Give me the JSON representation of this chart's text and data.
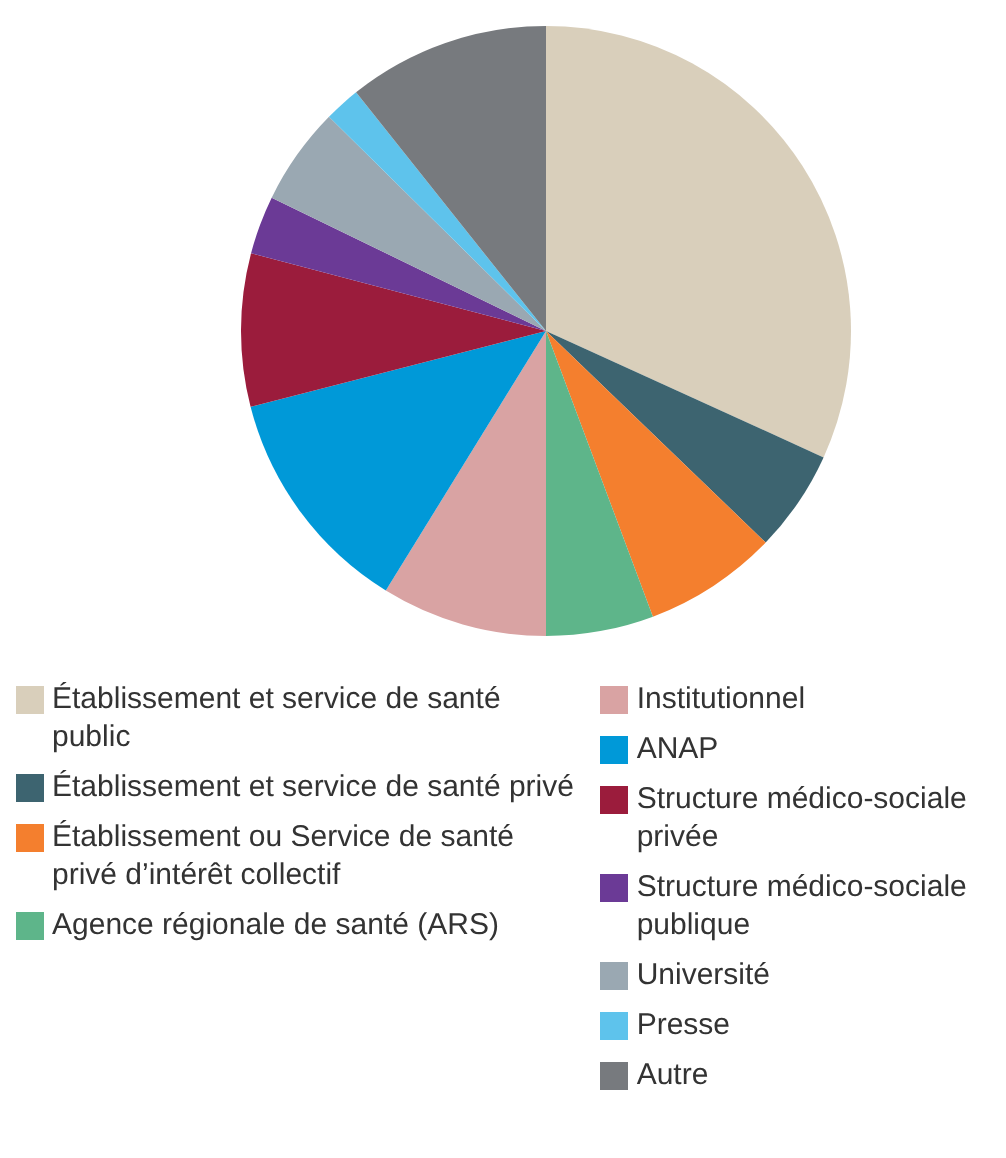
{
  "chart_data": {
    "type": "pie",
    "legend": "bottom",
    "categories": [
      "Établissement et service de santé public",
      "Établissement et service de santé privé",
      "Établissement ou Service de santé privé d’intérêt collectif",
      "Agence régionale de santé (ARS)",
      "Institutionnel",
      "ANAP",
      "Structure médico-sociale privée",
      "Structure médico-sociale publique",
      "Université",
      "Presse",
      "Autre"
    ],
    "values": [
      31.8,
      5.4,
      7.1,
      5.7,
      8.8,
      12.2,
      8.1,
      3.1,
      5.2,
      1.9,
      10.7
    ],
    "colors": [
      "#d9cfbb",
      "#3d6470",
      "#f47f2e",
      "#5eb58a",
      "#d9a3a3",
      "#0099d8",
      "#9b1c3c",
      "#6b3a96",
      "#9aa8b2",
      "#5ec3ec",
      "#777a7e"
    ]
  }
}
